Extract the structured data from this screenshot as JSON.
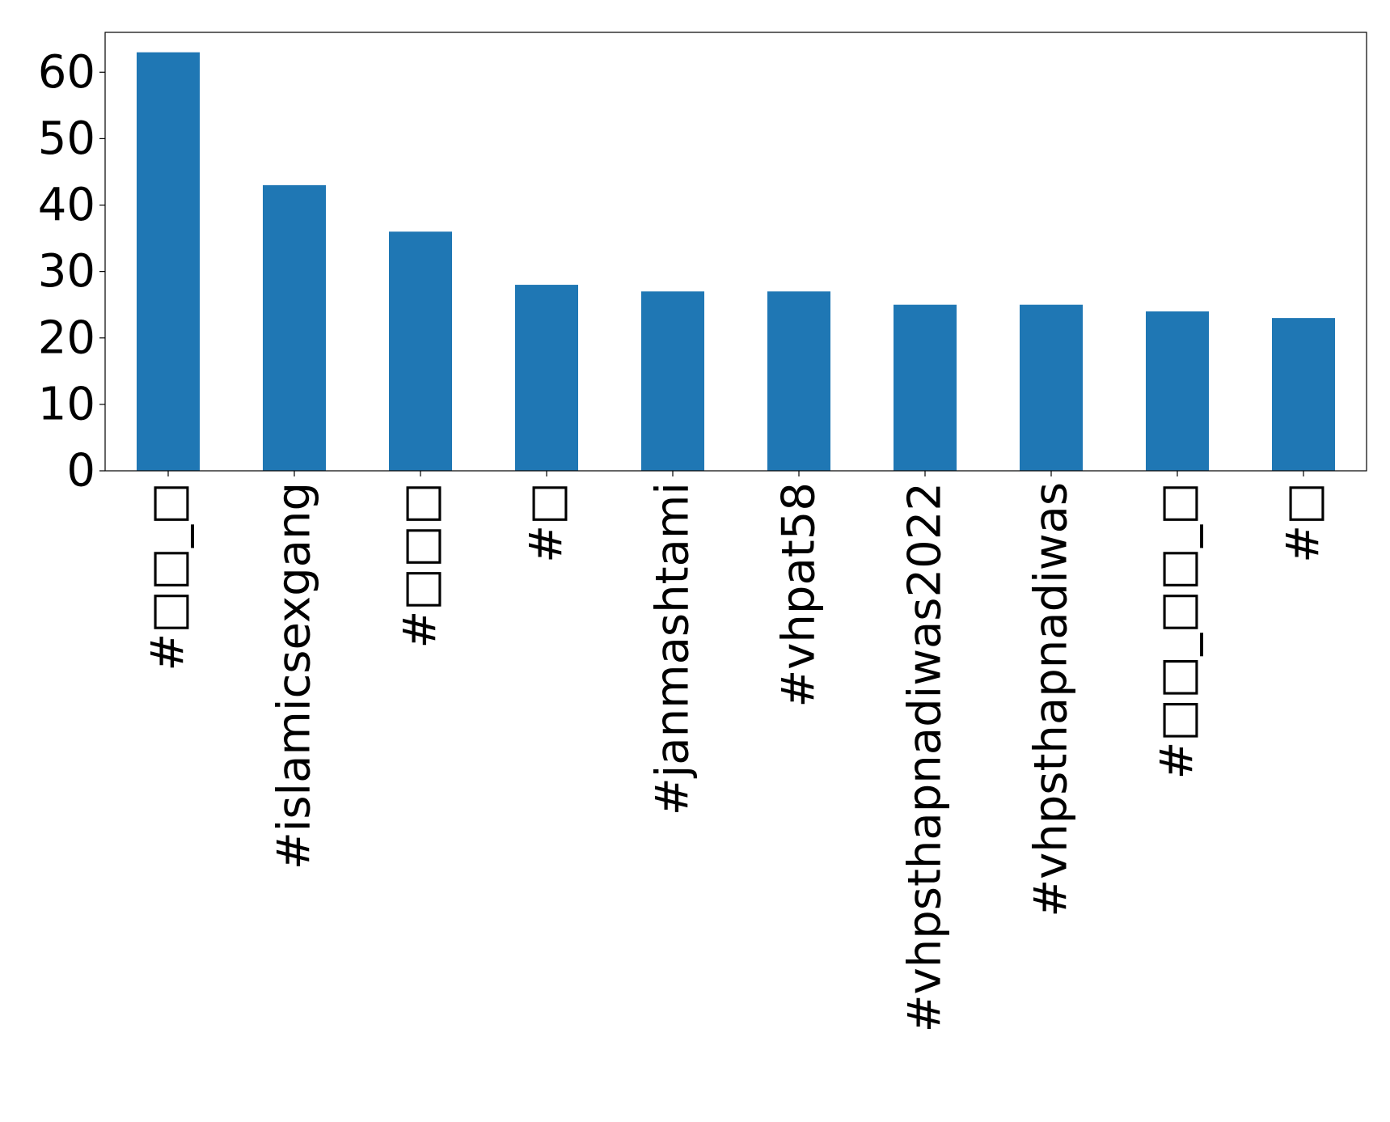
{
  "chart_data": {
    "type": "bar",
    "categories": [
      "#□□_□",
      "#islamicsexgang",
      "#□□□",
      "#□",
      "#janmashtami",
      "#vhpat58",
      "#vhpsthapnadiwas2022",
      "#vhpsthapnadiwas",
      "#□□_□□_□",
      "#□"
    ],
    "values": [
      63,
      43,
      36,
      28,
      27,
      27,
      25,
      25,
      24,
      23
    ],
    "yticks": [
      "0",
      "10",
      "20",
      "30",
      "40",
      "50",
      "60"
    ],
    "ylim": [
      0,
      66
    ],
    "title": "",
    "xlabel": "",
    "ylabel": "",
    "grid": false,
    "legend": "none",
    "colors": {
      "bar": "#1f77b4",
      "axis": "#000000"
    }
  }
}
